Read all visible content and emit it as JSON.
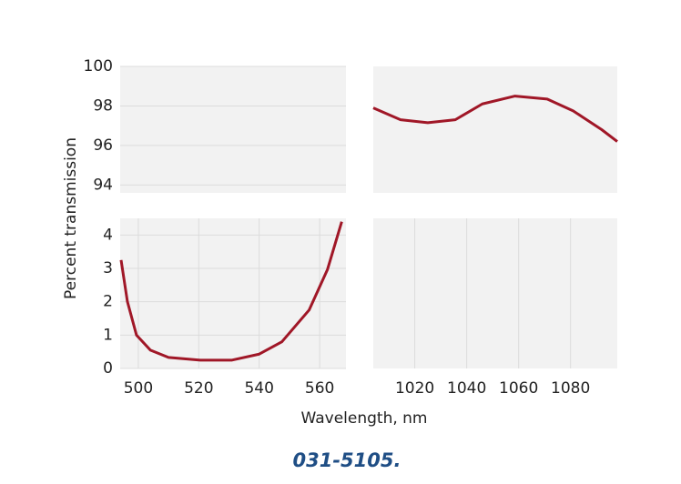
{
  "y_label": "Percent  transmission",
  "x_label": "Wavelength, nm",
  "caption": "031-5105.",
  "chart_data": [
    {
      "type": "line",
      "xlim": [
        494,
        568.7
      ],
      "ylim": [
        93.6,
        100
      ],
      "yticks": [
        94,
        96,
        98,
        100
      ],
      "grid": true
    },
    {
      "type": "line",
      "xlim": [
        1004,
        1098
      ],
      "ylim": [
        93.6,
        100
      ],
      "grid": true,
      "series": [
        {
          "color": "#a01727",
          "x": [
            1004,
            1014.5,
            1025,
            1035.6,
            1046,
            1058.6,
            1071,
            1081,
            1092,
            1098
          ],
          "values": [
            97.9,
            97.3,
            97.15,
            97.3,
            98.1,
            98.5,
            98.35,
            97.75,
            96.8,
            96.2
          ]
        }
      ]
    },
    {
      "type": "line",
      "xlim": [
        494,
        568.7
      ],
      "ylim": [
        0,
        4.5
      ],
      "xticks": [
        500,
        520,
        540,
        560
      ],
      "yticks": [
        0,
        1,
        2,
        3,
        4
      ],
      "grid": true,
      "series": [
        {
          "color": "#a01727",
          "x": [
            494.3,
            496.4,
            499.4,
            504,
            510,
            520.5,
            531,
            540,
            547.5,
            556.5,
            562.6,
            567.3
          ],
          "values": [
            3.25,
            2.0,
            1.0,
            0.55,
            0.33,
            0.25,
            0.25,
            0.43,
            0.8,
            1.75,
            2.97,
            4.4
          ]
        }
      ]
    },
    {
      "type": "line",
      "xlim": [
        1004,
        1098
      ],
      "ylim": [
        0,
        4.5
      ],
      "xticks": [
        1020,
        1040,
        1060,
        1080
      ],
      "grid": true
    }
  ]
}
